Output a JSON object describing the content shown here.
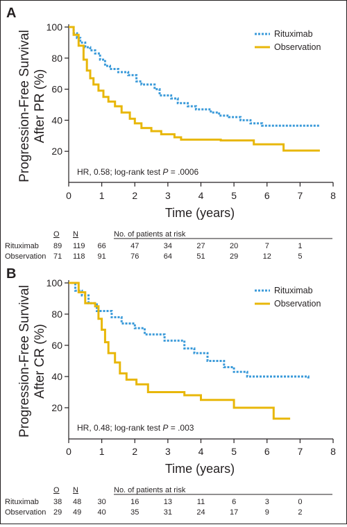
{
  "chart_data": [
    {
      "type": "line",
      "panel_letter": "A",
      "ylabel": [
        "Progression-Free Survival",
        "After PR (%)"
      ],
      "xlabel": "Time (years)",
      "xticks": [
        0,
        1,
        2,
        3,
        4,
        5,
        6,
        7,
        8
      ],
      "yticks": [
        20,
        40,
        60,
        80,
        100
      ],
      "xlim": [
        0,
        8
      ],
      "ylim": [
        0,
        100
      ],
      "legend": {
        "placement": "top-right"
      },
      "annotation": {
        "pre": "HR, 0.58; log-rank test ",
        "p": "P",
        "post": " = .0006"
      },
      "series": [
        {
          "name": "Rituximab",
          "color": "#3a9ad9",
          "style": "dotted",
          "x": [
            0,
            0.15,
            0.25,
            0.35,
            0.5,
            0.65,
            0.8,
            0.95,
            1.1,
            1.25,
            1.5,
            1.8,
            2.05,
            2.2,
            2.6,
            2.75,
            3.1,
            3.3,
            3.6,
            3.85,
            4.3,
            4.55,
            4.85,
            5.2,
            5.5,
            5.85,
            7.6
          ],
          "y": [
            100,
            96,
            93,
            90,
            87,
            85,
            83,
            79,
            75,
            73,
            71,
            69,
            65,
            63,
            60,
            56,
            54,
            51,
            49,
            47,
            45,
            43,
            42,
            40,
            38,
            36.5,
            36.5
          ]
        },
        {
          "name": "Observation",
          "color": "#e8b70a",
          "style": "solid",
          "x": [
            0,
            0.15,
            0.3,
            0.45,
            0.55,
            0.65,
            0.75,
            0.9,
            1.05,
            1.2,
            1.4,
            1.6,
            1.85,
            2.0,
            2.2,
            2.5,
            2.8,
            3.2,
            3.4,
            4.6,
            5.6,
            6.5,
            7.6
          ],
          "y": [
            100,
            95,
            88,
            79,
            72,
            67,
            63,
            59,
            55,
            52,
            49,
            45,
            41,
            38,
            35,
            33,
            31,
            29,
            27.5,
            27,
            24.5,
            20.5,
            20.5
          ]
        }
      ],
      "risk_table": {
        "col_o": "O",
        "col_n": "N",
        "header": "No. of patients at risk",
        "rows": [
          {
            "label": "Rituximab",
            "o": "89",
            "n": "119",
            "values": [
              "66",
              "47",
              "34",
              "27",
              "20",
              "7",
              "1"
            ]
          },
          {
            "label": "Observation",
            "o": "71",
            "n": "118",
            "values": [
              "91",
              "76",
              "64",
              "51",
              "29",
              "12",
              "5"
            ]
          }
        ]
      }
    },
    {
      "type": "line",
      "panel_letter": "B",
      "ylabel": [
        "Progression-Free Survival",
        "After CR (%)"
      ],
      "xlabel": "Time (years)",
      "xticks": [
        0,
        1,
        2,
        3,
        4,
        5,
        6,
        7,
        8
      ],
      "yticks": [
        20,
        40,
        60,
        80,
        100
      ],
      "xlim": [
        0,
        8
      ],
      "ylim": [
        0,
        100
      ],
      "legend": {
        "placement": "top-right"
      },
      "annotation": {
        "pre": "HR, 0.48; log-rank test ",
        "p": "P",
        "post": " = .003"
      },
      "series": [
        {
          "name": "Rituximab",
          "color": "#3a9ad9",
          "style": "dotted",
          "x": [
            0,
            0.2,
            0.4,
            0.6,
            0.85,
            1.3,
            1.6,
            2.0,
            2.3,
            2.9,
            3.5,
            3.8,
            4.2,
            4.7,
            5.0,
            5.4,
            7.25
          ],
          "y": [
            100,
            95,
            92,
            87,
            82,
            78,
            74,
            71,
            67,
            63,
            58,
            55,
            50,
            46,
            43,
            40,
            38
          ]
        },
        {
          "name": "Observation",
          "color": "#e8b70a",
          "style": "solid",
          "x": [
            0,
            0.3,
            0.5,
            0.8,
            0.9,
            1.0,
            1.1,
            1.2,
            1.4,
            1.55,
            1.75,
            2.05,
            2.4,
            3.5,
            4.0,
            5.0,
            6.2,
            6.7
          ],
          "y": [
            100,
            94,
            87,
            85,
            77,
            70,
            62,
            55,
            49,
            42,
            38,
            35,
            30,
            28,
            25,
            20,
            13,
            13
          ]
        }
      ],
      "risk_table": {
        "col_o": "O",
        "col_n": "N",
        "header": "No. of patients at risk",
        "rows": [
          {
            "label": "Rituximab",
            "o": "38",
            "n": "48",
            "values": [
              "30",
              "16",
              "13",
              "11",
              "6",
              "3",
              "0"
            ]
          },
          {
            "label": "Observation",
            "o": "29",
            "n": "49",
            "values": [
              "40",
              "35",
              "31",
              "24",
              "17",
              "9",
              "2"
            ]
          }
        ]
      }
    }
  ]
}
